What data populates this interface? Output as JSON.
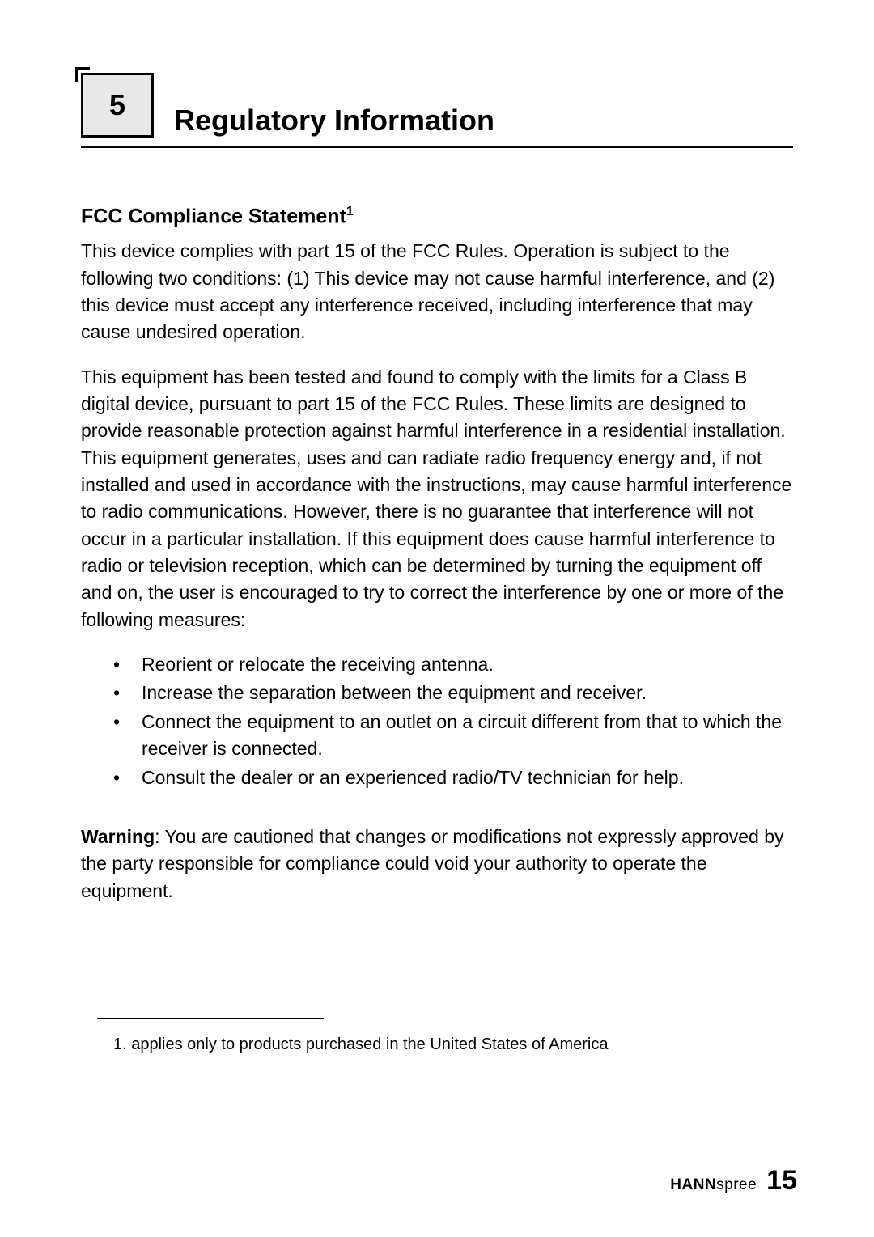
{
  "section": {
    "number": "5",
    "title": "Regulatory Information"
  },
  "subsection": {
    "title": "FCC Compliance Statement",
    "footnote_marker": "1"
  },
  "paragraphs": {
    "p1": "This device complies with part 15 of the FCC Rules. Operation is subject to the following two conditions: (1) This device may not cause harmful interference, and (2) this device must accept any interference received, including interference that may cause undesired operation.",
    "p2": "This equipment has been tested and found to comply with the limits for a Class B digital device, pursuant to part 15 of the FCC Rules. These limits are designed to provide reasonable protection against harmful interference in a residential installation. This equipment generates, uses and can radiate radio frequency energy and, if not installed and used in accordance with the instructions, may cause harmful interference to radio communications. However, there is no guarantee that interference will not occur in a particular installation. If this equipment does cause harmful interference to radio or television reception, which can be determined by turning the equipment off and on, the user is encouraged to try to correct the interference by one or more of the following measures:"
  },
  "bullets": [
    "Reorient or relocate the receiving antenna.",
    "Increase the separation between the equipment and receiver.",
    "Connect the equipment to an outlet on a circuit different from that to which the receiver is connected.",
    "Consult the dealer or an experienced radio/TV technician for help."
  ],
  "warning": {
    "label": "Warning",
    "text": ": You are cautioned that changes or modifications not expressly approved by the party responsible for compliance could void your authority to operate the equipment."
  },
  "footnote": {
    "text": "1.  applies only to products purchased in the United States of America"
  },
  "footer": {
    "brand_bold": "HANN",
    "brand_rest": "spree",
    "page_number": "15"
  }
}
